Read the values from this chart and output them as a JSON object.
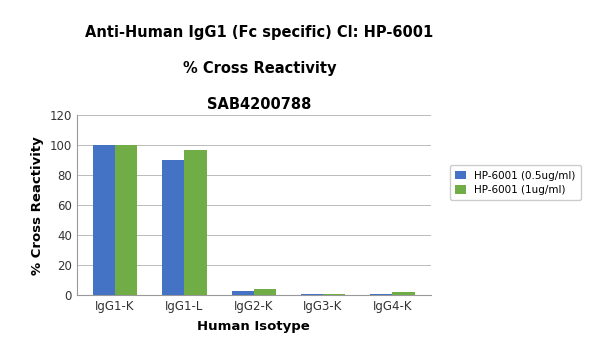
{
  "title_line1": "Anti-Human IgG1 (Fc specific) Cl: HP-6001",
  "title_line2": "% Cross Reactivity",
  "title_line3": "SAB4200788",
  "categories": [
    "IgG1-K",
    "IgG1-L",
    "IgG2-K",
    "IgG3-K",
    "IgG4-K"
  ],
  "series1_label": "HP-6001 (0.5ug/ml)",
  "series2_label": "HP-6001 (1ug/ml)",
  "series1_values": [
    100,
    90,
    3,
    1,
    1
  ],
  "series2_values": [
    100,
    97,
    4,
    0.5,
    2
  ],
  "series1_color": "#4472C4",
  "series2_color": "#70AD47",
  "xlabel": "Human Isotype",
  "ylabel": "% Cross Reactivity",
  "ylim": [
    0,
    120
  ],
  "yticks": [
    0,
    20,
    40,
    60,
    80,
    100,
    120
  ],
  "background_color": "#FFFFFF",
  "grid_color": "#BBBBBB",
  "bar_width": 0.32,
  "title_fontsize": 10.5,
  "axis_label_fontsize": 9.5,
  "tick_fontsize": 8.5,
  "legend_fontsize": 7.5
}
